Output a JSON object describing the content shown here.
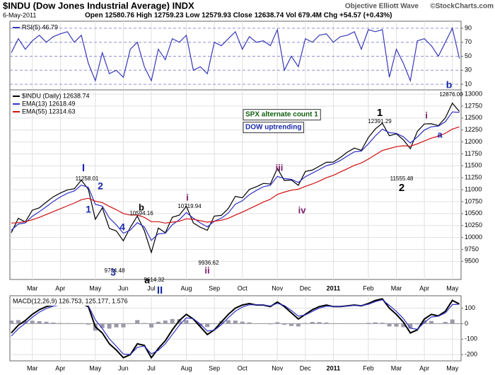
{
  "header": {
    "symbol": "$INDU (Dow Jones Industrial Average) INDX",
    "date": "6-May-2011",
    "quote": "Open 12580.76   High 12759.23   Low 12579.93   Close 12638.74   Vol 679.4M   Chg +54.57 (+0.43%)",
    "source": "Objective Elliott Wave",
    "copyright": "©StockCharts.com"
  },
  "chart_data": [
    {
      "type": "line",
      "series": [
        {
          "name": "RSI(5) 46.79",
          "color": "#3838b8",
          "values": [
            55,
            75,
            60,
            72,
            80,
            70,
            78,
            82,
            85,
            70,
            80,
            40,
            15,
            55,
            25,
            30,
            20,
            60,
            70,
            35,
            15,
            60,
            45,
            75,
            70,
            80,
            30,
            35,
            25,
            70,
            65,
            75,
            85,
            60,
            78,
            70,
            72,
            65,
            88,
            30,
            50,
            35,
            75,
            70,
            80,
            82,
            70,
            78,
            80,
            85,
            60,
            88,
            85,
            88,
            20,
            60,
            40,
            15,
            72,
            75,
            65,
            50,
            70,
            90,
            47
          ]
        }
      ],
      "ylim": [
        2,
        100
      ],
      "yticks": [
        10,
        30,
        50,
        70,
        90
      ],
      "grid": true
    },
    {
      "type": "line",
      "categories": [
        null,
        null,
        null,
        "Mar",
        null,
        null,
        null,
        "Apr",
        null,
        null,
        null,
        null,
        "May",
        null,
        null,
        null,
        "Jun",
        null,
        null,
        null,
        "Jul",
        null,
        null,
        null,
        null,
        "Aug",
        null,
        null,
        null,
        "Sep",
        null,
        null,
        null,
        "Oct",
        null,
        null,
        null,
        null,
        "Nov",
        null,
        null,
        null,
        "Dec",
        null,
        null,
        null,
        "2011",
        null,
        null,
        null,
        null,
        "Feb",
        null,
        null,
        null,
        "Mar",
        null,
        null,
        null,
        "Apr",
        null,
        null,
        null,
        "May",
        null
      ],
      "series": [
        {
          "name": "$INDU (Daily) 12638.74",
          "color": "#000000",
          "values": [
            10100,
            10400,
            10325,
            10570,
            10620,
            10740,
            10850,
            10930,
            10995,
            11020,
            11200,
            11008,
            10380,
            10620,
            10190,
            10136,
            9931,
            10211,
            10450,
            10143,
            9686,
            10198,
            10097,
            10424,
            10466,
            10653,
            10303,
            10213,
            10150,
            10447,
            10462,
            10607,
            10860,
            10829,
            11006,
            11062,
            11132,
            11118,
            11444,
            11192,
            11203,
            11092,
            11382,
            11410,
            11491,
            11573,
            11577,
            11674,
            11787,
            11871,
            11823,
            12092,
            12273,
            12391,
            12130,
            12169,
            12044,
            11858,
            12220,
            12376,
            12380,
            12341,
            12505,
            12810,
            12638
          ]
        },
        {
          "name": "EMA(13) 12618.49",
          "color": "#3030c8",
          "values": [
            10150,
            10282,
            10305,
            10445,
            10538,
            10645,
            10754,
            10847,
            10925,
            10975,
            11094,
            11048,
            10694,
            10655,
            10409,
            10264,
            10088,
            10153,
            10310,
            10221,
            9938,
            10076,
            10087,
            10266,
            10372,
            10521,
            10405,
            10303,
            10222,
            10341,
            10405,
            10512,
            10696,
            10767,
            10894,
            10983,
            11062,
            11092,
            11279,
            11233,
            11217,
            11151,
            11273,
            11346,
            11423,
            11502,
            11542,
            11612,
            11705,
            11793,
            11809,
            11959,
            12125,
            12266,
            12194,
            12181,
            12108,
            11976,
            12105,
            12249,
            12318,
            12330,
            12423,
            12628,
            12618
          ]
        },
        {
          "name": "EMA(55) 12314.63",
          "color": "#d01010",
          "values": [
            10300,
            10310,
            10330,
            10370,
            10420,
            10480,
            10540,
            10600,
            10660,
            10720,
            10790,
            10820,
            10760,
            10730,
            10650,
            10580,
            10500,
            10470,
            10470,
            10420,
            10330,
            10330,
            10300,
            10320,
            10340,
            10390,
            10380,
            10350,
            10320,
            10340,
            10360,
            10400,
            10470,
            10530,
            10600,
            10670,
            10740,
            10800,
            10900,
            10950,
            10990,
            11010,
            11070,
            11120,
            11180,
            11250,
            11300,
            11370,
            11440,
            11510,
            11560,
            11640,
            11730,
            11820,
            11860,
            11900,
            11920,
            11910,
            11960,
            12020,
            12080,
            12120,
            12180,
            12270,
            12315
          ]
        }
      ],
      "ylim": [
        9120,
        13090
      ],
      "yticks": [
        9500,
        9750,
        10000,
        10250,
        10500,
        10750,
        11000,
        11250,
        11500,
        11750,
        12000,
        12250,
        12500,
        12750,
        13000
      ],
      "grid": true,
      "legend": "upper left",
      "annotations": [
        "I",
        "11258.01",
        "2",
        "1",
        "4",
        "b",
        "10594.16",
        "9734.48",
        "3",
        "9614.32",
        "a",
        "II",
        "i",
        "10719.94",
        "9936.62",
        "ii",
        "iii",
        "iv",
        "1",
        "12391.29",
        "11555.48",
        "2",
        "i",
        "a",
        "b",
        "12876.00",
        "SPX alternate count 1",
        "DOW uptrending"
      ]
    },
    {
      "type": "line",
      "title": "MACD(12,26,9) 126.753, 125.177, 1.576",
      "series": [
        {
          "type": "bar",
          "color": "#9a9aaa",
          "values": [
            20,
            23,
            17,
            19,
            16,
            12,
            7,
            4,
            3,
            -2,
            3,
            -6,
            -45,
            -28,
            -32,
            -24,
            -24,
            -1,
            23,
            4,
            -25,
            12,
            20,
            30,
            30,
            23,
            -2,
            -17,
            -22,
            3,
            17,
            22,
            20,
            13,
            8,
            -1,
            -1,
            -4,
            9,
            -7,
            -15,
            -18,
            4,
            11,
            10,
            7,
            -1,
            -1,
            1,
            2,
            -1,
            5,
            8,
            6,
            -18,
            -19,
            -23,
            -31,
            -4,
            22,
            17,
            2,
            11,
            27,
            2
          ]
        },
        {
          "color": "#000000",
          "values": [
            -60,
            -10,
            20,
            60,
            90,
            110,
            120,
            125,
            130,
            120,
            130,
            110,
            -20,
            -60,
            -130,
            -170,
            -220,
            -200,
            -130,
            -140,
            -220,
            -160,
            -110,
            -40,
            20,
            60,
            30,
            -20,
            -70,
            -40,
            10,
            60,
            100,
            120,
            130,
            120,
            120,
            110,
            140,
            110,
            70,
            30,
            60,
            90,
            110,
            120,
            110,
            110,
            115,
            120,
            115,
            130,
            150,
            160,
            100,
            60,
            10,
            -60,
            -40,
            30,
            60,
            50,
            80,
            150,
            127
          ]
        },
        {
          "color": "#3030c8",
          "values": [
            -80,
            -33,
            3,
            41,
            74,
            98,
            113,
            121,
            127,
            122,
            127,
            116,
            25,
            -32,
            -98,
            -146,
            -196,
            -199,
            -153,
            -144,
            -195,
            -172,
            -130,
            -70,
            -10,
            37,
            32,
            -3,
            -48,
            -43,
            -7,
            38,
            80,
            107,
            122,
            121,
            121,
            114,
            131,
            117,
            85,
            48,
            56,
            79,
            100,
            113,
            111,
            111,
            114,
            118,
            116,
            125,
            142,
            154,
            118,
            79,
            33,
            -29,
            -36,
            8,
            43,
            48,
            69,
            123,
            125
          ]
        }
      ],
      "ylim": [
        -240,
        180
      ],
      "yticks": [
        -200,
        -100,
        0,
        100
      ],
      "grid": true
    }
  ]
}
